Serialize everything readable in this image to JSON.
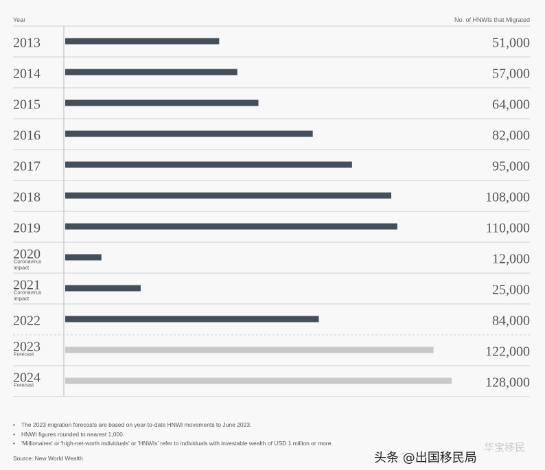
{
  "header": {
    "left_label": "Year",
    "right_label": "No. of HNWIs that Migrated"
  },
  "colors": {
    "actual_bar": "#454f5c",
    "forecast_bar": "#c9c9c9",
    "row_line": "#cfcfcf",
    "text": "#555555"
  },
  "chart_data": {
    "type": "bar",
    "orientation": "horizontal",
    "title": "",
    "xlabel": "No. of HNWIs that Migrated",
    "ylabel": "Year",
    "categories": [
      "2013",
      "2014",
      "2015",
      "2016",
      "2017",
      "2018",
      "2019",
      "2020",
      "2021",
      "2022",
      "2023",
      "2024"
    ],
    "values": [
      51000,
      57000,
      64000,
      82000,
      95000,
      108000,
      110000,
      12000,
      25000,
      84000,
      122000,
      128000
    ],
    "value_labels": [
      "51,000",
      "57,000",
      "64,000",
      "82,000",
      "95,000",
      "108,000",
      "110,000",
      "12,000",
      "25,000",
      "84,000",
      "122,000",
      "128,000"
    ],
    "sublabels": [
      "",
      "",
      "",
      "",
      "",
      "",
      "",
      "Coronavirus impact",
      "Coronavirus impact",
      "",
      "Forecast",
      "Forecast"
    ],
    "forecast": [
      false,
      false,
      false,
      false,
      false,
      false,
      false,
      false,
      false,
      false,
      true,
      true
    ],
    "xlim": [
      0,
      128000
    ],
    "grid": false
  },
  "notes": [
    "The 2023 migration forecasts are based on year-to-date HNWI movements to June 2023.",
    "HNWI figures rounded to nearest 1,000.",
    "'Millionaires' or 'high-net-worth individuals' or 'HNWIs' refer to individuals with investable wealth of USD 1 million or more."
  ],
  "source": "Source: New World Wealth",
  "watermark": {
    "text": "头条 @出国移民局",
    "seal": "华宝移民"
  }
}
